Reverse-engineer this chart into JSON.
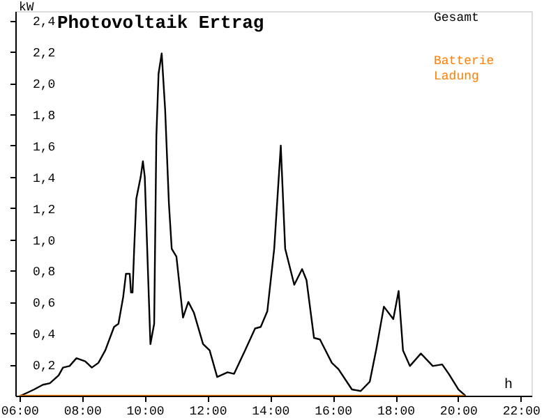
{
  "chart_data": {
    "type": "line",
    "title": "Photovoltaik Ertrag",
    "xlabel": "h",
    "ylabel": "kW",
    "xlim": [
      5.87,
      22.34
    ],
    "ylim": [
      0,
      2.46
    ],
    "xticks": [
      {
        "value": 6,
        "label": "06:00"
      },
      {
        "value": 8,
        "label": "08:00"
      },
      {
        "value": 10,
        "label": "10:00"
      },
      {
        "value": 12,
        "label": "12:00"
      },
      {
        "value": 14,
        "label": "14:00"
      },
      {
        "value": 16,
        "label": "16:00"
      },
      {
        "value": 18,
        "label": "18:00"
      },
      {
        "value": 20,
        "label": "20:00"
      },
      {
        "value": 22,
        "label": "22:00"
      }
    ],
    "yticks": [
      {
        "value": 0.2,
        "label": "0,2"
      },
      {
        "value": 0.4,
        "label": "0,4"
      },
      {
        "value": 0.6,
        "label": "0,6"
      },
      {
        "value": 0.8,
        "label": "0,8"
      },
      {
        "value": 1.0,
        "label": "1,0"
      },
      {
        "value": 1.2,
        "label": "1,2"
      },
      {
        "value": 1.4,
        "label": "1,4"
      },
      {
        "value": 1.6,
        "label": "1,6"
      },
      {
        "value": 1.8,
        "label": "1,8"
      },
      {
        "value": 2.0,
        "label": "2,0"
      },
      {
        "value": 2.2,
        "label": "2,2"
      },
      {
        "value": 2.4,
        "label": "2,4"
      }
    ],
    "grid": false,
    "legend": "top right",
    "marker": "none",
    "line_style": "solid",
    "series": [
      {
        "name": "Gesamt",
        "color": "#000000",
        "x": [
          6.04,
          6.26,
          6.47,
          6.75,
          6.97,
          7.25,
          7.39,
          7.6,
          7.82,
          8.1,
          8.31,
          8.52,
          8.74,
          9.02,
          9.16,
          9.31,
          9.4,
          9.52,
          9.56,
          9.61,
          9.66,
          9.73,
          9.8,
          9.87,
          9.94,
          10.0,
          10.18,
          10.3,
          10.37,
          10.44,
          10.54,
          10.65,
          10.77,
          10.86,
          11.01,
          11.22,
          11.39,
          11.57,
          11.86,
          12.07,
          12.31,
          12.64,
          12.85,
          13.2,
          13.52,
          13.7,
          13.91,
          14.13,
          14.34,
          14.48,
          14.77,
          15.02,
          15.16,
          15.4,
          15.59,
          15.97,
          16.18,
          16.61,
          16.89,
          17.18,
          17.39,
          17.63,
          17.93,
          18.1,
          18.24,
          18.46,
          18.81,
          19.19,
          19.49,
          19.7,
          20.01,
          20.23
        ],
        "values": [
          0.0,
          0.02,
          0.04,
          0.07,
          0.08,
          0.13,
          0.18,
          0.19,
          0.24,
          0.22,
          0.18,
          0.21,
          0.29,
          0.44,
          0.46,
          0.63,
          0.78,
          0.78,
          0.66,
          0.66,
          0.93,
          1.26,
          1.33,
          1.4,
          1.5,
          1.4,
          0.33,
          0.46,
          1.66,
          2.06,
          2.19,
          1.83,
          1.23,
          0.94,
          0.89,
          0.5,
          0.6,
          0.53,
          0.33,
          0.29,
          0.12,
          0.15,
          0.14,
          0.29,
          0.43,
          0.44,
          0.54,
          0.94,
          1.6,
          0.94,
          0.71,
          0.81,
          0.74,
          0.37,
          0.36,
          0.21,
          0.17,
          0.04,
          0.03,
          0.09,
          0.3,
          0.57,
          0.49,
          0.67,
          0.29,
          0.19,
          0.27,
          0.19,
          0.2,
          0.14,
          0.04,
          0.0
        ]
      },
      {
        "name": "Batterie Ladung",
        "color": "#ff8000",
        "x": [
          6.0,
          20.2
        ],
        "values": [
          0,
          0
        ]
      }
    ]
  }
}
